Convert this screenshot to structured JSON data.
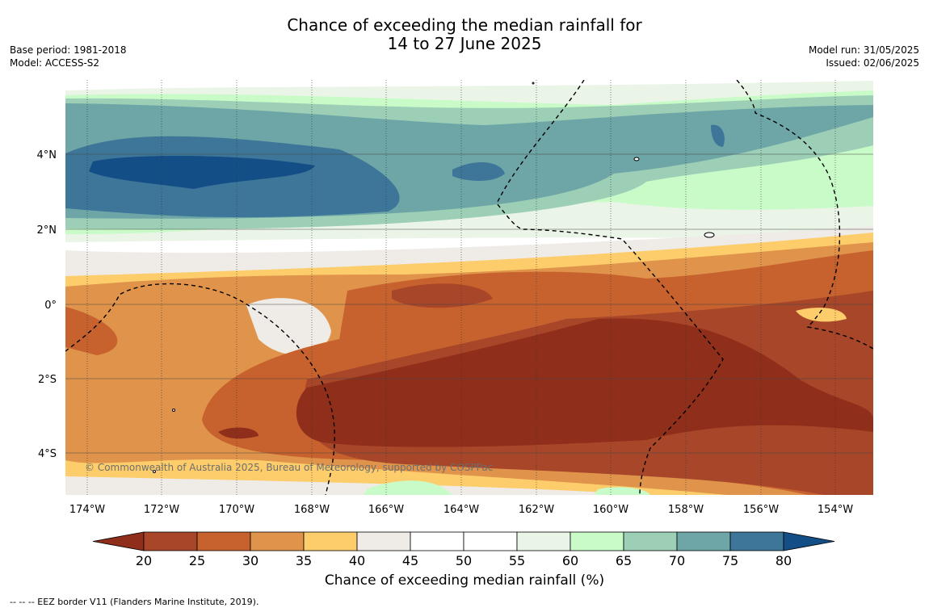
{
  "header": {
    "title_line1": "Chance of exceeding the median rainfall for",
    "title_line2": "14 to 27 June 2025",
    "base_period": "Base period: 1981-2018",
    "model": "Model: ACCESS-S2",
    "model_run": "Model run: 31/05/2025",
    "issued": "Issued: 02/06/2025"
  },
  "map": {
    "lat_labels": [
      "4°N",
      "2°N",
      "0°",
      "2°S",
      "4°S"
    ],
    "lon_labels": [
      "174°W",
      "172°W",
      "170°W",
      "168°W",
      "166°W",
      "164°W",
      "162°W",
      "160°W",
      "158°W",
      "156°W",
      "154°W"
    ],
    "copyright": "© Commonwealth of Australia 2025, Bureau of Meteorology, supported by COSPPac"
  },
  "colorbar": {
    "ticks": [
      "20",
      "25",
      "30",
      "35",
      "40",
      "45",
      "50",
      "55",
      "60",
      "65",
      "70",
      "75",
      "80"
    ],
    "colors": [
      "#8f2f1b",
      "#a8462a",
      "#c7622f",
      "#e0934a",
      "#fdcd6b",
      "#efebe7",
      "#ffffff",
      "#ffffff",
      "#eaf5e7",
      "#c8fbc8",
      "#9ccfb6",
      "#6ea6a7",
      "#3d7698",
      "#134e86"
    ],
    "title": "Chance of exceeding median rainfall (%)"
  },
  "legend": {
    "eez": "--  --  -- EEZ border V11 (Flanders Marine Institute, 2019)."
  }
}
